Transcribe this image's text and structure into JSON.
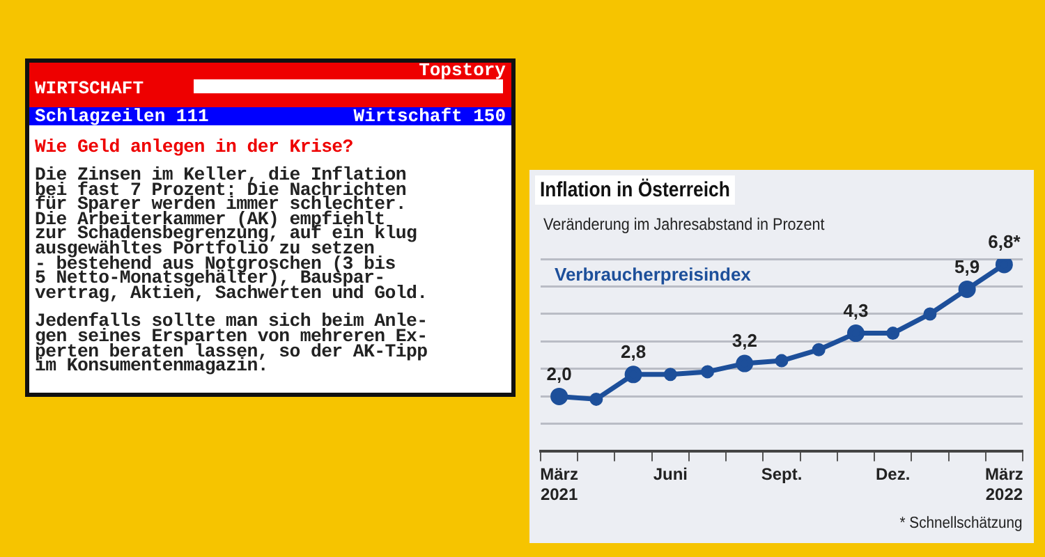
{
  "chart_data": [
    {
      "type": "other",
      "title": "Wie Geld anlegen in der Krise?",
      "annotations": [
        "Topstory",
        "WIRTSCHAFT",
        "Schlagzeilen 111",
        "Wirtschaft 150",
        "Die Zinsen im Keller, die Inflation\nbei fast 7 Prozent: Die Nachrichten\nfür Sparer werden immer schlechter.\nDie Arbeiterkammer (AK) empfiehlt\nzur Schadensbegrenzung, auf ein klug\nausgewähltes Portfolio zu setzen\n- bestehend aus Notgroschen (3 bis\n5 Netto-Monatsgehälter), Bauspar-\nvertrag, Aktien, Sachwerten und Gold.",
        "Jedenfalls sollte man sich beim Anle-\ngen seines Ersparten von mehreren Ex-\nperten beraten lassen, so der AK-Tipp\nim Konsumentenmagazin."
      ]
    },
    {
      "type": "line",
      "title": "Inflation in Österreich",
      "subtitle": "Veränderung im Jahresabstand in Prozent",
      "categories": [
        "März 2021",
        null,
        null,
        "Juni",
        null,
        null,
        "Sept.",
        null,
        null,
        "Dez.",
        null,
        null,
        "März 2022"
      ],
      "series": [
        {
          "name": "Verbraucherpreisindex",
          "color": "#1d4f9a",
          "values": [
            2.0,
            1.9,
            2.8,
            2.8,
            2.9,
            3.2,
            3.3,
            3.7,
            4.3,
            4.3,
            5.0,
            5.9,
            6.8
          ],
          "value_labels": [
            "2,0",
            null,
            "2,8",
            null,
            null,
            "3,2",
            null,
            null,
            "4,3",
            null,
            null,
            "5,9",
            "6,8*"
          ]
        }
      ],
      "ylim": [
        0,
        7
      ],
      "yticks": [
        {
          "value": 1,
          "label": null
        },
        {
          "value": 2,
          "label": null
        },
        {
          "value": 3,
          "label": null
        },
        {
          "value": 4,
          "label": null
        },
        {
          "value": 5,
          "label": null
        },
        {
          "value": 6,
          "label": null
        },
        {
          "value": 7,
          "label": null
        }
      ],
      "grid": "y",
      "tick_labels": "x",
      "legend": false,
      "marker": "circle",
      "line_style": "solid",
      "annotations": [
        "* Schnellschätzung"
      ]
    }
  ]
}
